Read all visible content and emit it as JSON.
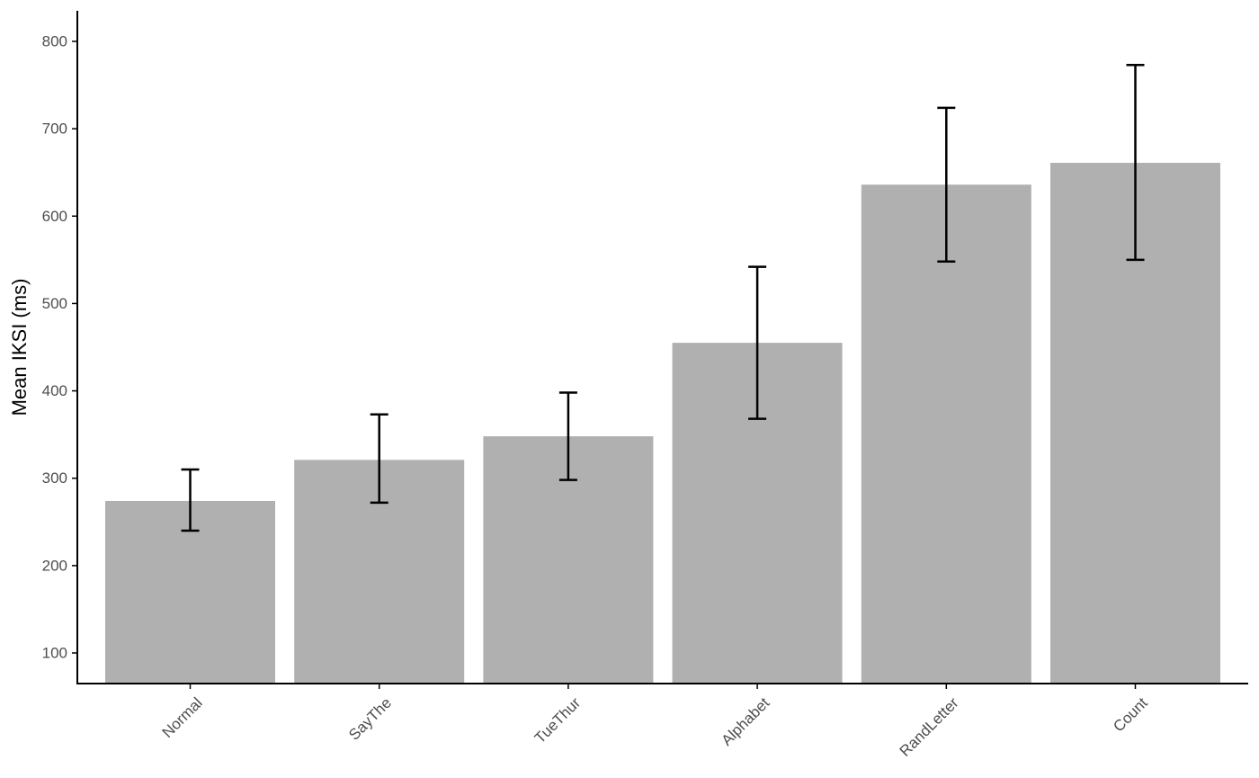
{
  "chart_data": {
    "type": "bar",
    "title": "",
    "xlabel": "",
    "ylabel": "Mean IKSI (ms)",
    "categories": [
      "Normal",
      "SayThe",
      "TueThur",
      "Alphabet",
      "RandLetter",
      "Count"
    ],
    "values": [
      274,
      321,
      348,
      455,
      636,
      661
    ],
    "error_low": [
      240,
      272,
      298,
      368,
      548,
      550
    ],
    "error_high": [
      310,
      373,
      398,
      542,
      724,
      773
    ],
    "ylim": [
      65,
      835
    ],
    "yticks": [
      100,
      200,
      300,
      400,
      500,
      600,
      700,
      800
    ],
    "grid": false,
    "legend": "none",
    "colors": {
      "bar": "#b0b0b0",
      "error_bar": "#000000",
      "axis": "#000000",
      "tick_label": "#4d4d4d"
    }
  }
}
